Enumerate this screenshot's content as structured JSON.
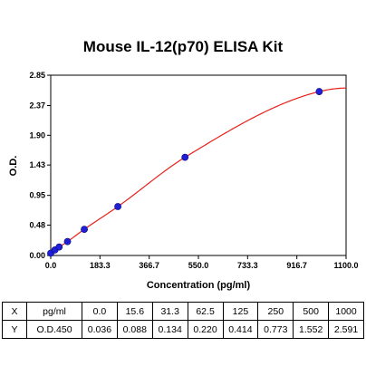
{
  "chart_data": {
    "type": "scatter",
    "title": "Mouse IL-12(p70) ELISA Kit",
    "xlabel": "Concentration (pg/ml)",
    "ylabel": "O.D.",
    "xlim": [
      0.0,
      1100.0
    ],
    "ylim": [
      0.0,
      2.85
    ],
    "x_ticks": [
      "0.0",
      "183.3",
      "366.7",
      "550.0",
      "733.3",
      "916.7",
      "1100.0"
    ],
    "y_ticks": [
      "0.00",
      "0.48",
      "0.95",
      "1.43",
      "1.90",
      "2.37",
      "2.85"
    ],
    "x_tick_values": [
      0,
      183.3,
      366.7,
      550,
      733.3,
      916.7,
      1100
    ],
    "y_tick_values": [
      0,
      0.48,
      0.95,
      1.43,
      1.9,
      2.37,
      2.85
    ],
    "x": [
      0.0,
      15.6,
      31.3,
      62.5,
      125,
      250,
      500,
      1000
    ],
    "y": [
      0.036,
      0.088,
      0.134,
      0.22,
      0.414,
      0.773,
      1.552,
      2.591
    ],
    "fit_curve": true,
    "point_color": "#1f1fd6",
    "curve_color": "#e8201a",
    "grid": false
  },
  "table": {
    "rows": [
      {
        "axis": "X",
        "unit": "pg/ml",
        "values": [
          "0.0",
          "15.6",
          "31.3",
          "62.5",
          "125",
          "250",
          "500",
          "1000"
        ]
      },
      {
        "axis": "Y",
        "unit": "O.D.450",
        "values": [
          "0.036",
          "0.088",
          "0.134",
          "0.220",
          "0.414",
          "0.773",
          "1.552",
          "2.591"
        ]
      }
    ]
  }
}
